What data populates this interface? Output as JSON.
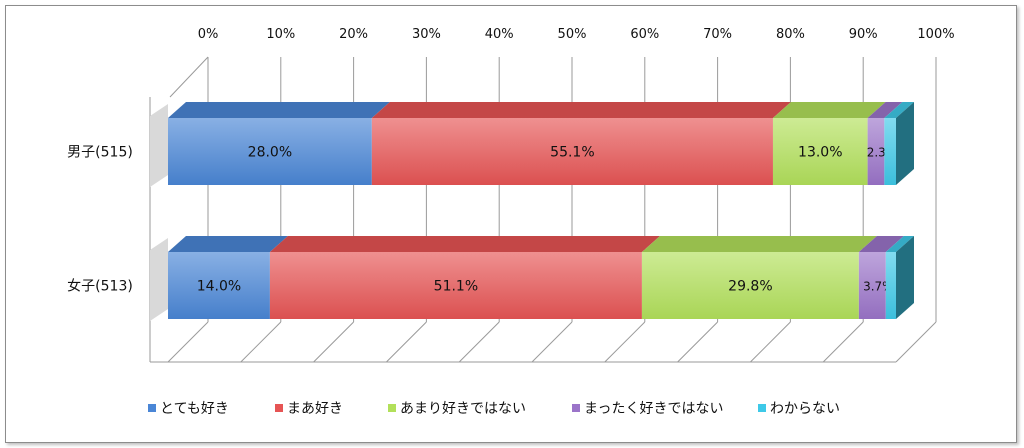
{
  "chart_data": {
    "type": "bar",
    "orientation": "horizontal",
    "stacked": "100%",
    "style": "3d",
    "xlim": [
      0,
      100
    ],
    "x_ticks": [
      "0%",
      "10%",
      "20%",
      "30%",
      "40%",
      "50%",
      "60%",
      "70%",
      "80%",
      "90%",
      "100%"
    ],
    "categories": [
      "男子(515)",
      "女子(513)"
    ],
    "series": [
      {
        "name": "とても好き",
        "color": "#4a86d6",
        "values": [
          28.0,
          14.0
        ],
        "labels": [
          "28.0%",
          "14.0%"
        ]
      },
      {
        "name": "まあ好き",
        "color": "#e65454",
        "values": [
          55.1,
          51.1
        ],
        "labels": [
          "55.1%",
          "51.1%"
        ]
      },
      {
        "name": "あまり好きではない",
        "color": "#b2e05a",
        "values": [
          13.0,
          29.8
        ],
        "labels": [
          "13.0%",
          "29.8%"
        ]
      },
      {
        "name": "まったく好きではない",
        "color": "#9b74c9",
        "values": [
          2.3,
          3.7
        ],
        "labels": [
          "2.3%",
          "3.7%"
        ]
      },
      {
        "name": "わからない",
        "color": "#3ec9e8",
        "values": [
          1.6,
          1.4
        ],
        "labels": [
          "",
          ""
        ]
      }
    ],
    "grid": true,
    "legend_position": "bottom"
  }
}
